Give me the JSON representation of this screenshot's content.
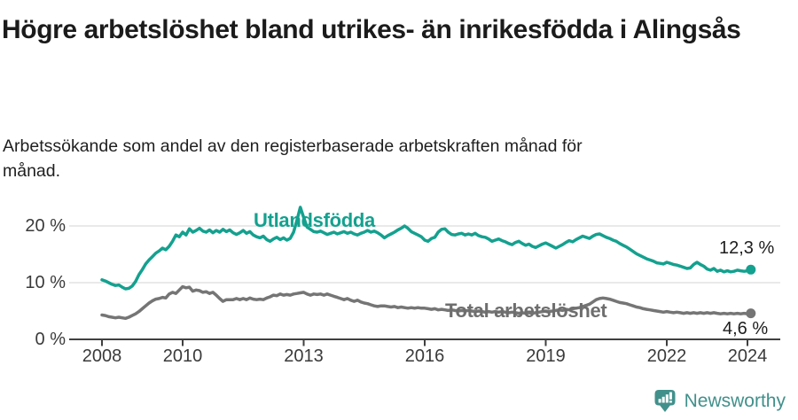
{
  "header": {
    "title": "Högre arbetslöshet bland utrikes- än inrikesfödda i Alingsås",
    "subtitle": "Arbetssökande som andel av den registerbaserade arbetskraften månad för månad."
  },
  "chart_data": {
    "type": "line",
    "title": "Högre arbetslöshet bland utrikes- än inrikesfödda i Alingsås",
    "subtitle": "Arbetssökande som andel av den registerbaserade arbetskraften månad för månad.",
    "x_unit": "month",
    "x_start": "2008-01",
    "x_end": "2024-02",
    "ylim": [
      0,
      24.7
    ],
    "grid": "horizontal",
    "y_ticks": [
      {
        "value": 0,
        "label": "0 %"
      },
      {
        "value": 10,
        "label": "10 %"
      },
      {
        "value": 20,
        "label": "20 %"
      }
    ],
    "x_ticks": [
      {
        "year": 2008,
        "label": "2008"
      },
      {
        "year": 2010,
        "label": "2010"
      },
      {
        "year": 2013,
        "label": "2013"
      },
      {
        "year": 2016,
        "label": "2016"
      },
      {
        "year": 2019,
        "label": "2019"
      },
      {
        "year": 2022,
        "label": "2022"
      },
      {
        "year": 2024,
        "label": "2024"
      }
    ],
    "series": [
      {
        "name": "Utlandsfödda",
        "color": "#14a18f",
        "end_value": 12.3,
        "end_label": "12,3 %",
        "values": [
          10.5,
          10.3,
          10.0,
          9.7,
          9.5,
          9.6,
          9.2,
          8.9,
          9.0,
          9.4,
          10.2,
          11.4,
          12.3,
          13.3,
          14.0,
          14.6,
          15.2,
          15.6,
          16.1,
          15.8,
          16.4,
          17.3,
          18.4,
          18.1,
          18.9,
          18.4,
          19.5,
          18.9,
          19.2,
          19.6,
          19.1,
          18.9,
          19.3,
          18.8,
          19.2,
          18.9,
          19.4,
          19.0,
          19.3,
          18.8,
          18.5,
          18.8,
          19.2,
          18.7,
          19.0,
          18.4,
          18.1,
          17.9,
          18.2,
          17.6,
          17.3,
          17.7,
          18.0,
          17.6,
          17.9,
          17.5,
          17.8,
          18.9,
          21.0,
          23.3,
          21.5,
          19.8,
          19.4,
          19.0,
          18.9,
          19.1,
          18.8,
          18.5,
          18.7,
          18.9,
          18.6,
          18.8,
          19.0,
          18.7,
          18.9,
          18.6,
          18.4,
          18.7,
          18.9,
          19.2,
          18.9,
          19.1,
          18.8,
          18.4,
          17.9,
          18.3,
          18.6,
          18.9,
          19.3,
          19.6,
          20.0,
          19.6,
          19.0,
          18.7,
          18.4,
          18.1,
          17.5,
          17.3,
          17.8,
          18.0,
          18.9,
          19.4,
          19.5,
          18.9,
          18.5,
          18.4,
          18.6,
          18.7,
          18.4,
          18.6,
          18.4,
          18.7,
          18.3,
          18.1,
          18.0,
          17.7,
          17.3,
          17.5,
          17.7,
          17.4,
          17.2,
          16.9,
          16.7,
          17.1,
          17.3,
          16.9,
          16.6,
          16.8,
          16.4,
          16.2,
          16.5,
          16.8,
          17.0,
          16.7,
          16.4,
          16.1,
          16.4,
          16.7,
          17.1,
          17.4,
          17.2,
          17.6,
          17.9,
          18.2,
          18.0,
          17.8,
          18.2,
          18.5,
          18.6,
          18.3,
          18.0,
          17.8,
          17.5,
          17.3,
          16.9,
          16.6,
          16.3,
          15.9,
          15.5,
          15.1,
          14.8,
          14.5,
          14.2,
          14.0,
          13.8,
          13.5,
          13.4,
          13.3,
          13.6,
          13.4,
          13.2,
          13.1,
          12.9,
          12.7,
          12.5,
          12.6,
          13.2,
          13.6,
          13.2,
          12.9,
          12.4,
          12.2,
          12.5,
          12.0,
          12.2,
          11.9,
          12.1,
          11.9,
          12.0,
          12.2,
          12.1,
          12.0,
          12.1,
          12.3
        ]
      },
      {
        "name": "Total arbetslöshet",
        "color": "#757575",
        "end_value": 4.6,
        "end_label": "4,6 %",
        "values": [
          4.3,
          4.2,
          4.0,
          3.9,
          3.8,
          3.9,
          3.8,
          3.7,
          3.9,
          4.2,
          4.5,
          4.9,
          5.4,
          5.9,
          6.4,
          6.8,
          7.1,
          7.2,
          7.4,
          7.3,
          8.0,
          8.3,
          8.1,
          8.7,
          9.3,
          9.1,
          9.2,
          8.5,
          8.7,
          8.6,
          8.3,
          8.4,
          8.1,
          8.3,
          7.8,
          7.2,
          6.7,
          7.0,
          7.0,
          7.0,
          7.2,
          7.0,
          7.2,
          7.0,
          7.3,
          7.1,
          7.0,
          7.1,
          7.0,
          7.3,
          7.5,
          7.8,
          7.7,
          8.0,
          7.8,
          7.9,
          7.8,
          8.0,
          8.1,
          8.2,
          8.3,
          8.0,
          7.8,
          8.0,
          7.9,
          8.0,
          7.8,
          8.0,
          7.8,
          7.6,
          7.4,
          7.2,
          7.0,
          7.2,
          6.9,
          6.7,
          6.9,
          6.6,
          6.4,
          6.3,
          6.1,
          5.9,
          5.8,
          5.9,
          5.9,
          5.8,
          5.7,
          5.8,
          5.6,
          5.7,
          5.6,
          5.5,
          5.6,
          5.5,
          5.6,
          5.5,
          5.5,
          5.4,
          5.3,
          5.4,
          5.2,
          5.3,
          5.2,
          5.1,
          5.2,
          5.1,
          5.0,
          5.1,
          5.0,
          5.1,
          5.0,
          4.9,
          5.0,
          4.9,
          4.8,
          4.9,
          4.8,
          4.9,
          4.8,
          4.9,
          4.8,
          4.7,
          4.8,
          4.7,
          4.6,
          4.7,
          4.6,
          4.7,
          4.6,
          4.7,
          4.8,
          4.9,
          5.0,
          4.9,
          5.0,
          5.1,
          5.2,
          5.1,
          5.3,
          5.2,
          5.4,
          5.5,
          5.6,
          5.8,
          6.0,
          6.2,
          6.6,
          7.0,
          7.2,
          7.3,
          7.2,
          7.1,
          6.9,
          6.7,
          6.5,
          6.4,
          6.3,
          6.1,
          5.9,
          5.7,
          5.6,
          5.4,
          5.3,
          5.2,
          5.1,
          5.0,
          4.9,
          4.8,
          4.9,
          4.8,
          4.7,
          4.8,
          4.7,
          4.6,
          4.7,
          4.6,
          4.7,
          4.6,
          4.7,
          4.6,
          4.7,
          4.6,
          4.7,
          4.6,
          4.5,
          4.6,
          4.5,
          4.6,
          4.5,
          4.6,
          4.5,
          4.6,
          4.5,
          4.6
        ]
      }
    ],
    "style": {
      "gridline_color": "#dcdcdc",
      "axis_color": "#404040",
      "line_width": 3.5
    }
  },
  "branding": {
    "logo_text": "Newsworthy",
    "logo_color": "#41908b"
  }
}
